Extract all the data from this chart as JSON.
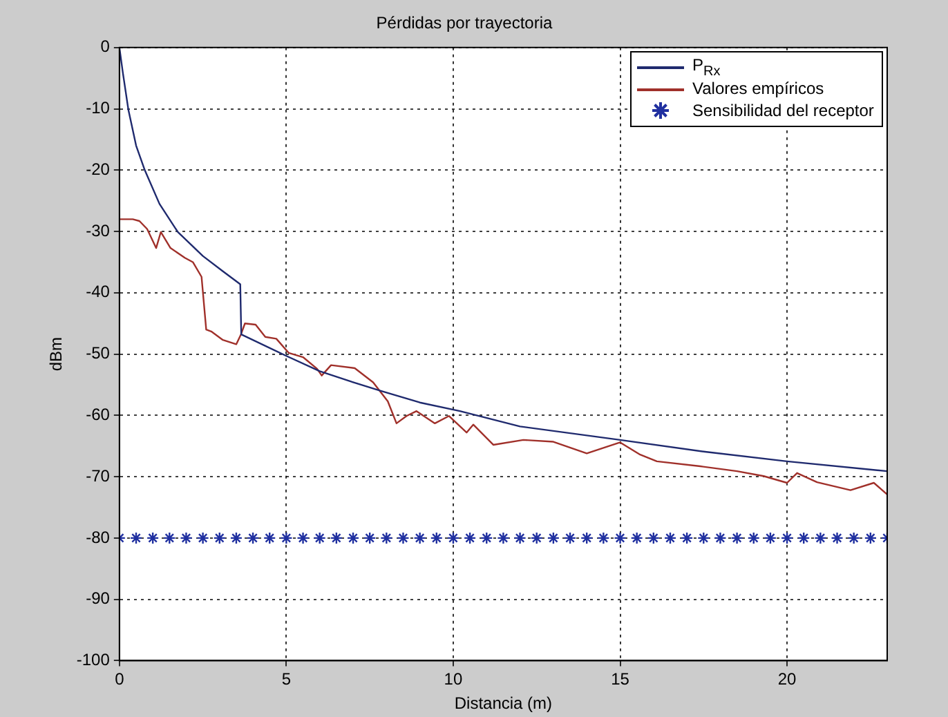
{
  "chart_data": {
    "type": "line",
    "title": "Pérdidas por trayectoria",
    "xlabel": "Distancia (m)",
    "ylabel": "dBm",
    "xlim": [
      0,
      23
    ],
    "xticks": [
      0,
      5,
      10,
      15,
      20
    ],
    "ylim": [
      -100,
      0
    ],
    "yticks": [
      0,
      -10,
      -20,
      -30,
      -40,
      -50,
      -60,
      -70,
      -80,
      -90,
      -100
    ],
    "grid": true,
    "legend": "top right",
    "line_style": "solid",
    "series": [
      {
        "name": "P$_{Rx}$",
        "color": "#1f2a6e",
        "marker": "none",
        "x": [
          0,
          0.1,
          0.27,
          0.5,
          0.76,
          1.2,
          1.75,
          2.5,
          3.1,
          3.62,
          3.65,
          5.0,
          6,
          7,
          7.83,
          9,
          10.2,
          12,
          15,
          17.5,
          20,
          23
        ],
        "values": [
          0,
          -4,
          -10.2,
          -16,
          -20,
          -25.5,
          -30.1,
          -34,
          -36.5,
          -38.6,
          -46.8,
          -50.3,
          -52.8,
          -54.6,
          -56,
          -57.9,
          -59.3,
          -61.8,
          -64,
          -65.9,
          -67.5,
          -69.1
        ]
      },
      {
        "name": "Valores empíricos",
        "color": "#a0302a",
        "marker": "none",
        "x": [
          0,
          0.4,
          0.6,
          0.83,
          1.1,
          1.24,
          1.53,
          1.96,
          2.2,
          2.46,
          2.6,
          2.75,
          3.1,
          3.5,
          3.64,
          3.76,
          4.08,
          4.37,
          4.7,
          5.07,
          5.5,
          5.92,
          6.06,
          6.34,
          7.05,
          7.6,
          8.04,
          8.3,
          8.6,
          8.9,
          9.45,
          9.87,
          10.4,
          10.6,
          11.2,
          12.1,
          13.0,
          14.0,
          15.0,
          15.6,
          16.1,
          17.4,
          18.5,
          19.3,
          20.0,
          20.3,
          20.9,
          21.9,
          22.6,
          23
        ],
        "values": [
          -28,
          -28,
          -28.3,
          -29.6,
          -32.7,
          -30.1,
          -32.7,
          -34.3,
          -35,
          -37.4,
          -46,
          -46.3,
          -47.7,
          -48.4,
          -46.8,
          -45,
          -45.2,
          -47.2,
          -47.5,
          -49.8,
          -50.5,
          -52.4,
          -53.5,
          -51.8,
          -52.3,
          -54.6,
          -57.7,
          -61.3,
          -60.1,
          -59.3,
          -61.3,
          -60.1,
          -62.8,
          -61.5,
          -64.8,
          -64,
          -64.3,
          -66.2,
          -64.4,
          -66.4,
          -67.5,
          -68.3,
          -69.1,
          -69.9,
          -71,
          -69.4,
          -70.9,
          -72.2,
          -71,
          -72.9
        ]
      },
      {
        "name": "Sensibilidad del receptor",
        "type": "scatter",
        "color": "#2030a0",
        "marker": "cross",
        "x": [
          0,
          0.5,
          1,
          1.5,
          2,
          2.5,
          3,
          3.5,
          4,
          4.5,
          5,
          5.5,
          6,
          6.5,
          7,
          7.5,
          8,
          8.5,
          9,
          9.5,
          10,
          10.5,
          11,
          11.5,
          12,
          12.5,
          13,
          13.5,
          14,
          14.5,
          15,
          15.5,
          16,
          16.5,
          17,
          17.5,
          18,
          18.5,
          19,
          19.5,
          20,
          20.5,
          21,
          21.5,
          22,
          22.5,
          23
        ],
        "values": [
          -80,
          -80,
          -80,
          -80,
          -80,
          -80,
          -80,
          -80,
          -80,
          -80,
          -80,
          -80,
          -80,
          -80,
          -80,
          -80,
          -80,
          -80,
          -80,
          -80,
          -80,
          -80,
          -80,
          -80,
          -80,
          -80,
          -80,
          -80,
          -80,
          -80,
          -80,
          -80,
          -80,
          -80,
          -80,
          -80,
          -80,
          -80,
          -80,
          -80,
          -80,
          -80,
          -80,
          -80,
          -80,
          -80,
          -80
        ]
      }
    ]
  }
}
